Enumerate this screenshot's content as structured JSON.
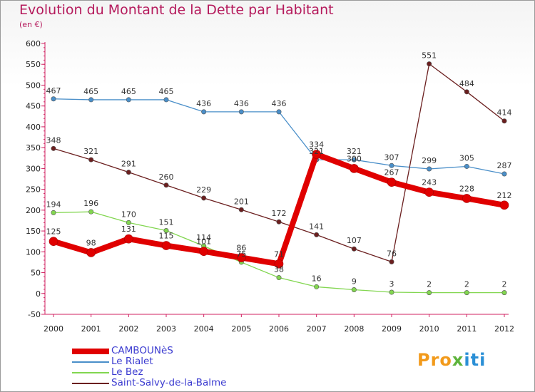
{
  "title": "Evolution du Montant de la Dette par Habitant",
  "subtitle": "(en €)",
  "logo": {
    "text": "Proxiti",
    "colors": [
      "#f29a1b",
      "#2a8fd6",
      "#5db33b"
    ]
  },
  "chart_data": {
    "type": "line",
    "x": [
      "2000",
      "2001",
      "2002",
      "2003",
      "2004",
      "2005",
      "2006",
      "2007",
      "2008",
      "2009",
      "2010",
      "2011",
      "2012"
    ],
    "ylim": [
      -50,
      600
    ],
    "yticks": [
      -50,
      0,
      50,
      100,
      150,
      200,
      250,
      300,
      350,
      400,
      450,
      500,
      550,
      600
    ],
    "grid": false,
    "legend_position": "bottom-left",
    "series": [
      {
        "name": "Le Rialet",
        "color": "#4a8fc9",
        "values": [
          467,
          465,
          465,
          465,
          436,
          436,
          436,
          321,
          321,
          307,
          299,
          305,
          287
        ]
      },
      {
        "name": "Le Bez",
        "color": "#82d650",
        "values": [
          194,
          196,
          170,
          151,
          114,
          75,
          38,
          16,
          9,
          3,
          2,
          2,
          2
        ]
      },
      {
        "name": "Saint-Salvy-de-la-Balme",
        "color": "#6b1f1f",
        "values": [
          348,
          321,
          291,
          260,
          229,
          201,
          172,
          141,
          107,
          76,
          551,
          484,
          414
        ]
      },
      {
        "name": "CAMBOUNèS",
        "color": "#e00000",
        "values": [
          125,
          98,
          131,
          115,
          101,
          86,
          71,
          334,
          300,
          267,
          243,
          228,
          212
        ]
      }
    ],
    "legend_order": [
      "CAMBOUNèS",
      "Le Rialet",
      "Le Bez",
      "Saint-Salvy-de-la-Balme"
    ]
  }
}
